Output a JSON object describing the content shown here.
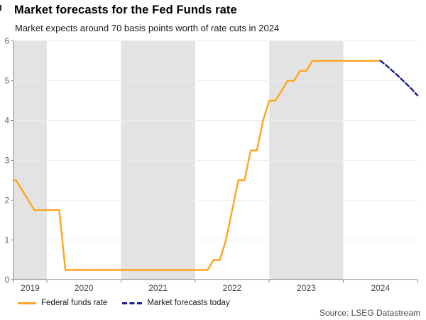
{
  "header": {
    "title": "Market forecasts for the Fed Funds rate",
    "subtitle": "Market expects around 70 basis points worth of rate cuts in 2024"
  },
  "legend": {
    "items": [
      {
        "label": "Federal funds rate",
        "color": "#FFA41E",
        "style": "solid"
      },
      {
        "label": "Market forecasts today",
        "color": "#1B1B9B",
        "style": "dashed"
      }
    ]
  },
  "source": "Source: LSEG Datastream",
  "chart_data": {
    "type": "line",
    "title": "Market forecasts for the Fed Funds rate",
    "subtitle": "Market expects around 70 basis points worth of rate cuts in 2024",
    "xlabel": "",
    "ylabel": "",
    "unit": "percent",
    "x_range": [
      2019.55,
      2025.0
    ],
    "y_range": [
      0,
      6
    ],
    "x_ticks": [
      2019,
      2020,
      2021,
      2022,
      2023,
      2024
    ],
    "y_ticks": [
      0,
      1,
      2,
      3,
      4,
      5,
      6
    ],
    "grid": true,
    "legend_position": "bottom-left",
    "shaded_bands_x": [
      [
        2019.55,
        2020
      ],
      [
        2021,
        2022
      ],
      [
        2023,
        2024
      ]
    ],
    "band_color": "#e3e3e3",
    "grid_color": "#ececec",
    "axis_color": "#8a8a8a",
    "tick_label_color": "#565656",
    "series": [
      {
        "name": "Federal funds rate",
        "color": "#FFA41E",
        "style": "solid",
        "points": [
          [
            2019.55,
            2.5
          ],
          [
            2019.583,
            2.5
          ],
          [
            2019.667,
            2.25
          ],
          [
            2019.75,
            2.0
          ],
          [
            2019.833,
            1.75
          ],
          [
            2020.167,
            1.75
          ],
          [
            2020.25,
            0.25
          ],
          [
            2022.167,
            0.25
          ],
          [
            2022.25,
            0.5
          ],
          [
            2022.333,
            0.5
          ],
          [
            2022.417,
            1.0
          ],
          [
            2022.5,
            1.75
          ],
          [
            2022.583,
            2.5
          ],
          [
            2022.667,
            2.5
          ],
          [
            2022.75,
            3.25
          ],
          [
            2022.833,
            3.25
          ],
          [
            2022.917,
            4.0
          ],
          [
            2023.0,
            4.5
          ],
          [
            2023.083,
            4.5
          ],
          [
            2023.167,
            4.75
          ],
          [
            2023.25,
            5.0
          ],
          [
            2023.333,
            5.0
          ],
          [
            2023.417,
            5.25
          ],
          [
            2023.5,
            5.25
          ],
          [
            2023.583,
            5.5
          ],
          [
            2024.5,
            5.5
          ]
        ]
      },
      {
        "name": "Market forecasts today",
        "color": "#1B1B9B",
        "style": "dashed",
        "points": [
          [
            2024.5,
            5.5
          ],
          [
            2024.583,
            5.38
          ],
          [
            2024.667,
            5.24
          ],
          [
            2024.75,
            5.1
          ],
          [
            2024.833,
            4.95
          ],
          [
            2024.917,
            4.8
          ],
          [
            2025.0,
            4.63
          ]
        ]
      }
    ]
  }
}
